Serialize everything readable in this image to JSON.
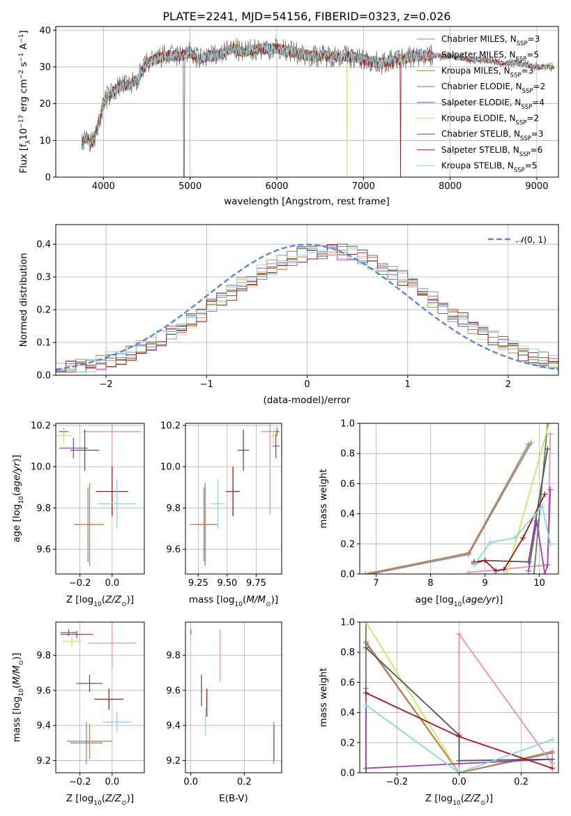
{
  "figure": {
    "title": "PLATE=2241, MJD=54156, FIBERID=0323, z=0.026"
  },
  "colors": {
    "Chabrier MILES": "#6b8fd6",
    "Salpeter MILES": "#e88fc0",
    "Kroupa MILES": "#cf7d2e",
    "Chabrier ELODIE": "#4f8a4f",
    "Salpeter ELODIE": "#9a3fb5",
    "Kroupa ELODIE": "#d4e35a",
    "Chabrier STELIB": "#555555",
    "Salpeter STELIB": "#b01515",
    "Kroupa STELIB": "#84d8e0"
  },
  "chart_data": [
    {
      "id": "spectrum",
      "type": "line",
      "title": "PLATE=2241, MJD=54156, FIBERID=0323, z=0.026",
      "xlabel": "wavelength [Angstrom, rest frame]",
      "ylabel": "Flux [f_λ 10^-17 erg cm^-2 s^-1 A^-1]",
      "xlim": [
        3450,
        9250
      ],
      "ylim": [
        0,
        41
      ],
      "xticks": [
        4000,
        5000,
        6000,
        7000,
        8000,
        9000
      ],
      "yticks": [
        0,
        10,
        20,
        30,
        40
      ],
      "legend_position": "upper-right",
      "legend": [
        "Chabrier MILES, N_SSP=3",
        "Salpeter MILES, N_SSP=5",
        "Kroupa MILES, N_SSP=3",
        "Chabrier ELODIE, N_SSP=2",
        "Salpeter ELODIE, N_SSP=4",
        "Kroupa ELODIE, N_SSP=2",
        "Chabrier STELIB, N_SSP=3",
        "Salpeter STELIB, N_SSP=6",
        "Kroupa STELIB, N_SSP=5"
      ],
      "data_spectrum": {
        "x": [
          3750,
          3800,
          3850,
          3900,
          3950,
          4000,
          4050,
          4100,
          4200,
          4300,
          4400,
          4500,
          4600,
          4700,
          4800,
          4900,
          5000,
          5100,
          5200,
          5300,
          5400,
          5500,
          5600,
          5800,
          6000,
          6200,
          6400,
          6600,
          6800,
          7000,
          7200,
          7400,
          7600,
          7800,
          8000,
          8200,
          8400,
          8600,
          8800,
          9000,
          9200
        ],
        "y": [
          9,
          11,
          9,
          11,
          15,
          20,
          22,
          23,
          25,
          25,
          27,
          31,
          32,
          33,
          33,
          33,
          34,
          32,
          33,
          33,
          34,
          35,
          34,
          35,
          35,
          34,
          33,
          33,
          33,
          32,
          31,
          32,
          33,
          33,
          33,
          32,
          32,
          31,
          31,
          30,
          30
        ]
      },
      "dropouts": [
        {
          "series": "Kroupa ELODIE",
          "x": 6810
        },
        {
          "series": "Salpeter STELIB",
          "x": 7430
        },
        {
          "series": "Chabrier STELIB",
          "x": 4930
        }
      ]
    },
    {
      "id": "residuals",
      "type": "step",
      "xlabel": "(data-model)/error",
      "ylabel": "Normed distribution",
      "xlim": [
        -2.5,
        2.5
      ],
      "ylim": [
        0,
        0.46
      ],
      "xticks": [
        -2,
        -1,
        0,
        1,
        2
      ],
      "yticks": [
        0.0,
        0.1,
        0.2,
        0.3,
        0.4
      ],
      "legend": [
        "N(0,1)"
      ],
      "gaussian": {
        "mean": 0,
        "sigma": 1
      },
      "bin_width": 0.1
    },
    {
      "id": "age-Z",
      "type": "errorbar",
      "xlabel": "Z [log10(Z/Z_sun)]",
      "ylabel": "age [log10(age/yr)]",
      "xlim": [
        -0.35,
        0.2
      ],
      "ylim": [
        9.48,
        10.21
      ],
      "xticks": [
        -0.2,
        0.0
      ],
      "yticks": [
        9.6,
        9.8,
        10.0,
        10.2
      ],
      "points": [
        {
          "series": "Chabrier MILES",
          "x": -0.15,
          "y": 9.72,
          "xerr": 0.09,
          "yerr": 0.18
        },
        {
          "series": "Kroupa MILES",
          "x": -0.14,
          "y": 9.72,
          "xerr": 0.09,
          "yerr": 0.2
        },
        {
          "series": "Salpeter MILES",
          "x": 0.0,
          "y": 10.17,
          "xerr": 0.18,
          "yerr": 0.4
        },
        {
          "series": "Chabrier ELODIE",
          "x": -0.3,
          "y": 10.17,
          "xerr": 0.03,
          "yerr": 0.02
        },
        {
          "series": "Kroupa ELODIE",
          "x": -0.3,
          "y": 10.15,
          "xerr": 0.05,
          "yerr": 0.04
        },
        {
          "series": "Salpeter ELODIE",
          "x": -0.24,
          "y": 10.09,
          "xerr": 0.09,
          "yerr": 0.05
        },
        {
          "series": "Chabrier STELIB",
          "x": -0.17,
          "y": 10.08,
          "xerr": 0.09,
          "yerr": 0.1
        },
        {
          "series": "Salpeter STELIB",
          "x": 0.0,
          "y": 9.88,
          "xerr": 0.1,
          "yerr": 0.12
        },
        {
          "series": "Kroupa STELIB",
          "x": 0.03,
          "y": 9.82,
          "xerr": 0.12,
          "yerr": 0.12
        }
      ]
    },
    {
      "id": "age-mass",
      "type": "errorbar",
      "xlabel": "mass [log10(M/M_sun)]",
      "ylabel": "",
      "xlim": [
        9.14,
        9.97
      ],
      "ylim": [
        9.48,
        10.21
      ],
      "xticks": [
        9.25,
        9.5,
        9.75
      ],
      "yticks": [
        9.6,
        9.8,
        10.0,
        10.2
      ],
      "points": [
        {
          "series": "Chabrier MILES",
          "x": 9.3,
          "y": 9.72,
          "xerr": 0.12,
          "yerr": 0.18
        },
        {
          "series": "Kroupa MILES",
          "x": 9.31,
          "y": 9.72,
          "xerr": 0.1,
          "yerr": 0.2
        },
        {
          "series": "Salpeter MILES",
          "x": 9.87,
          "y": 10.17,
          "xerr": 0.08,
          "yerr": 0.4
        },
        {
          "series": "Chabrier ELODIE",
          "x": 9.93,
          "y": 10.17,
          "xerr": 0.02,
          "yerr": 0.02
        },
        {
          "series": "Kroupa ELODIE",
          "x": 9.9,
          "y": 10.15,
          "xerr": 0.03,
          "yerr": 0.04
        },
        {
          "series": "Salpeter ELODIE",
          "x": 9.92,
          "y": 10.1,
          "xerr": 0.03,
          "yerr": 0.06
        },
        {
          "series": "Chabrier STELIB",
          "x": 9.64,
          "y": 10.08,
          "xerr": 0.05,
          "yerr": 0.1
        },
        {
          "series": "Salpeter STELIB",
          "x": 9.55,
          "y": 9.88,
          "xerr": 0.06,
          "yerr": 0.12
        },
        {
          "series": "Kroupa STELIB",
          "x": 9.42,
          "y": 9.82,
          "xerr": 0.06,
          "yerr": 0.12
        }
      ]
    },
    {
      "id": "weight-age",
      "type": "line",
      "xlabel": "age [log10(age/yr)]",
      "ylabel": "mass weight",
      "xlim": [
        6.7,
        10.35
      ],
      "ylim": [
        0,
        1
      ],
      "xticks": [
        7,
        8,
        9,
        10
      ],
      "yticks": [
        0.0,
        0.2,
        0.4,
        0.6,
        0.8,
        1.0
      ],
      "series": [
        {
          "name": "Chabrier MILES",
          "x": [
            6.9,
            8.7,
            9.85
          ],
          "y": [
            0.0,
            0.13,
            0.87
          ]
        },
        {
          "name": "Kroupa MILES",
          "x": [
            6.8,
            8.7,
            9.8
          ],
          "y": [
            0.0,
            0.14,
            0.86
          ]
        },
        {
          "name": "Salpeter MILES",
          "x": [
            8.7,
            10.15,
            10.2
          ],
          "y": [
            0.01,
            0.06,
            0.93
          ]
        },
        {
          "name": "Chabrier ELODIE",
          "x": [
            9.9,
            10.15
          ],
          "y": [
            0.0,
            1.0
          ]
        },
        {
          "name": "Kroupa ELODIE",
          "x": [
            9.4,
            10.18
          ],
          "y": [
            0.0,
            1.0
          ]
        },
        {
          "name": "Salpeter ELODIE",
          "x": [
            9.8,
            9.95,
            10.1,
            10.15,
            10.2
          ],
          "y": [
            0.02,
            0.35,
            0.0,
            0.06,
            0.56
          ]
        },
        {
          "name": "Chabrier STELIB",
          "x": [
            8.8,
            9.0,
            9.8,
            10.15
          ],
          "y": [
            0.07,
            0.09,
            0.08,
            0.83
          ]
        },
        {
          "name": "Salpeter STELIB",
          "x": [
            8.8,
            9.0,
            9.2,
            9.35,
            9.7,
            10.1
          ],
          "y": [
            0.08,
            0.09,
            0.02,
            0.03,
            0.24,
            0.53
          ]
        },
        {
          "name": "Kroupa STELIB",
          "x": [
            8.8,
            9.1,
            9.55,
            10.05,
            10.2
          ],
          "y": [
            0.06,
            0.21,
            0.24,
            0.45,
            0.2
          ]
        }
      ]
    },
    {
      "id": "mass-Z",
      "type": "errorbar",
      "xlabel": "Z [log10(Z/Z_sun)]",
      "ylabel": "mass [log10(M/M_sun)]",
      "xlim": [
        -0.35,
        0.2
      ],
      "ylim": [
        9.13,
        9.99
      ],
      "xticks": [
        -0.2,
        0.0
      ],
      "yticks": [
        9.2,
        9.4,
        9.6,
        9.8
      ],
      "points": [
        {
          "series": "Chabrier MILES",
          "x": -0.16,
          "y": 9.3,
          "xerr": 0.1,
          "yerr": 0.12
        },
        {
          "series": "Kroupa MILES",
          "x": -0.14,
          "y": 9.31,
          "xerr": 0.14,
          "yerr": 0.1
        },
        {
          "series": "Salpeter MILES",
          "x": 0.0,
          "y": 9.87,
          "xerr": 0.15,
          "yerr": 0.14
        },
        {
          "series": "Chabrier ELODIE",
          "x": -0.27,
          "y": 9.93,
          "xerr": 0.05,
          "yerr": 0.02
        },
        {
          "series": "Kroupa ELODIE",
          "x": -0.25,
          "y": 9.88,
          "xerr": 0.06,
          "yerr": 0.03
        },
        {
          "series": "Salpeter ELODIE",
          "x": -0.22,
          "y": 9.92,
          "xerr": 0.1,
          "yerr": 0.02
        },
        {
          "series": "Chabrier STELIB",
          "x": -0.14,
          "y": 9.64,
          "xerr": 0.08,
          "yerr": 0.05
        },
        {
          "series": "Salpeter STELIB",
          "x": -0.02,
          "y": 9.55,
          "xerr": 0.09,
          "yerr": 0.06
        },
        {
          "series": "Kroupa STELIB",
          "x": 0.03,
          "y": 9.42,
          "xerr": 0.09,
          "yerr": 0.06
        }
      ]
    },
    {
      "id": "mass-EBV",
      "type": "errorbar",
      "xlabel": "E(B-V)",
      "ylabel": "",
      "xlim": [
        -0.02,
        0.34
      ],
      "ylim": [
        9.13,
        9.99
      ],
      "xticks": [
        0.0,
        0.2
      ],
      "yticks": [
        9.2,
        9.4,
        9.6,
        9.8
      ],
      "points": [
        {
          "series": "Salpeter MILES",
          "x": 0.11,
          "y": 9.8,
          "xerr": 0,
          "yerr": 0.15
        },
        {
          "series": "Salpeter ELODIE",
          "x": 0.0,
          "y": 9.93,
          "xerr": 0,
          "yerr": 0.02
        },
        {
          "series": "Kroupa ELODIE",
          "x": 0.0,
          "y": 9.9,
          "xerr": 0,
          "yerr": 0.02
        },
        {
          "series": "Chabrier STELIB",
          "x": 0.04,
          "y": 9.6,
          "xerr": 0,
          "yerr": 0.09
        },
        {
          "series": "Salpeter STELIB",
          "x": 0.06,
          "y": 9.53,
          "xerr": 0,
          "yerr": 0.08
        },
        {
          "series": "Kroupa STELIB",
          "x": 0.055,
          "y": 9.42,
          "xerr": 0,
          "yerr": 0.08
        },
        {
          "series": "Kroupa MILES",
          "x": 0.31,
          "y": 9.3,
          "xerr": 0,
          "yerr": 0.12
        },
        {
          "series": "Chabrier MILES",
          "x": 0.312,
          "y": 9.3,
          "xerr": 0,
          "yerr": 0.1
        }
      ]
    },
    {
      "id": "weight-Z",
      "type": "line",
      "xlabel": "Z [log10(Z/Z_sun)]",
      "ylabel": "mass weight",
      "xlim": [
        -0.32,
        0.32
      ],
      "ylim": [
        0,
        1
      ],
      "xticks": [
        -0.2,
        0.0,
        0.2
      ],
      "yticks": [
        0.0,
        0.2,
        0.4,
        0.6,
        0.8,
        1.0
      ],
      "series": [
        {
          "name": "Chabrier MILES",
          "x": [
            -0.3,
            0.0,
            0.3
          ],
          "y": [
            0.87,
            0.0,
            0.13
          ]
        },
        {
          "name": "Kroupa MILES",
          "x": [
            -0.3,
            0.0,
            0.3
          ],
          "y": [
            0.86,
            0.0,
            0.14
          ]
        },
        {
          "name": "Salpeter MILES",
          "x": [
            0.0,
            0.0,
            0.3
          ],
          "y": [
            0.01,
            0.92,
            0.06
          ]
        },
        {
          "name": "Chabrier ELODIE",
          "x": [
            -0.3,
            -0.3
          ],
          "y": [
            0.0,
            1.0
          ]
        },
        {
          "name": "Kroupa ELODIE",
          "x": [
            -0.3,
            0.0
          ],
          "y": [
            1.0,
            0.0
          ]
        },
        {
          "name": "Salpeter ELODIE",
          "x": [
            -0.3,
            -0.3,
            0.0,
            0.3
          ],
          "y": [
            0.56,
            0.03,
            0.06,
            0.09
          ]
        },
        {
          "name": "Chabrier STELIB",
          "x": [
            -0.3,
            0.0,
            0.0,
            0.3
          ],
          "y": [
            0.83,
            0.25,
            0.08,
            0.09
          ]
        },
        {
          "name": "Salpeter STELIB",
          "x": [
            -0.3,
            0.0,
            0.3
          ],
          "y": [
            0.53,
            0.24,
            0.03
          ]
        },
        {
          "name": "Kroupa STELIB",
          "x": [
            -0.3,
            0.0,
            0.3
          ],
          "y": [
            0.45,
            0.0,
            0.22
          ]
        }
      ]
    }
  ]
}
